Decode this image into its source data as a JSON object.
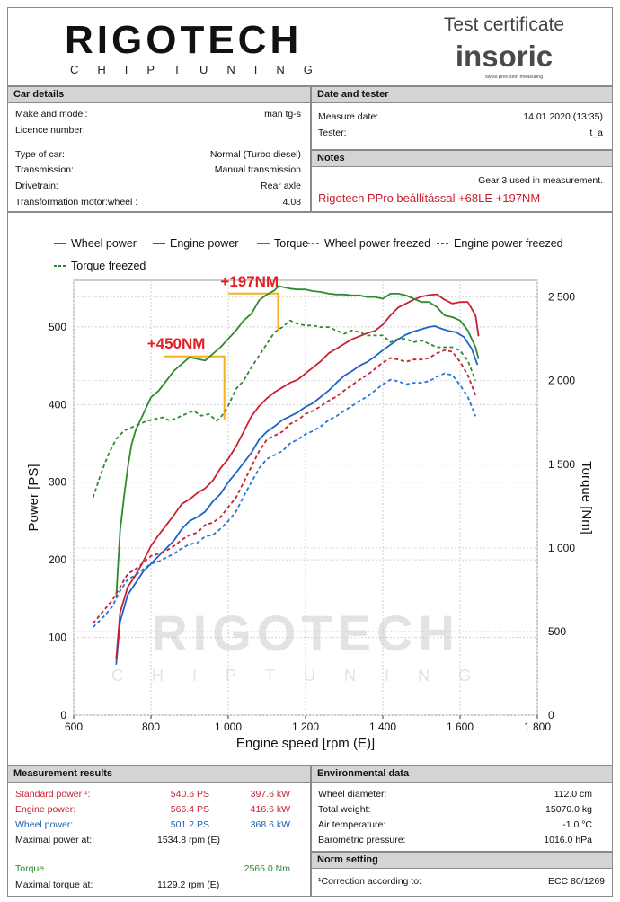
{
  "header": {
    "brand": "RIGOTECH",
    "brand_sub": "CHIPTUNING",
    "cert_title": "Test certificate",
    "cert_brand": "insoric",
    "cert_tagline": "swiss precision measuring"
  },
  "car_details": {
    "title": "Car details",
    "make_label": "Make and model:",
    "make_value": "man tg-s",
    "licence_label": "Licence number:",
    "licence_value": "",
    "type_label": "Type of car:",
    "type_value": "Normal (Turbo diesel)",
    "transmission_label": "Transmission:",
    "transmission_value": "Manual transmission",
    "drivetrain_label": "Drivetrain:",
    "drivetrain_value": "Rear axle",
    "ratio_label": "Transformation motor:wheel :",
    "ratio_value": "4.08"
  },
  "date_tester": {
    "title": "Date and tester",
    "date_label": "Measure date:",
    "date_value": "14.01.2020 (13:35)",
    "tester_label": "Tester:",
    "tester_value": "t_a"
  },
  "notes": {
    "title": "Notes",
    "gear_note": "Gear 3 used in measurement.",
    "tuning_note": "Rigotech PPro beállítással +68LE +197NM"
  },
  "chart_data": {
    "type": "line",
    "xlabel": "Engine speed [rpm (E)]",
    "ylabel": "Power [PS]",
    "y2label": "Torque [Nm]",
    "xlim": [
      600,
      1800
    ],
    "ylim": [
      0,
      560
    ],
    "y2lim": [
      0,
      2600
    ],
    "x_ticks": [
      "600",
      "800",
      "1 000",
      "1 200",
      "1 400",
      "1 600",
      "1 800"
    ],
    "y_ticks": [
      "0",
      "100",
      "200",
      "300",
      "400",
      "500"
    ],
    "y2_ticks": [
      "0",
      "500",
      "1 000",
      "1 500",
      "2 000",
      "2 500"
    ],
    "legend_placement": "top",
    "grid": true,
    "annotations": [
      {
        "text": "+197NM",
        "color": "#e02020"
      },
      {
        "text": "+450NM",
        "color": "#e02020"
      }
    ],
    "watermark": "RIGOTECH CHIPTUNING",
    "series": [
      {
        "name": "Wheel power",
        "axis": "left",
        "color": "#1e63c8",
        "dash": false,
        "x": [
          710,
          720,
          740,
          760,
          780,
          800,
          820,
          840,
          860,
          880,
          900,
          920,
          940,
          960,
          980,
          1000,
          1020,
          1040,
          1060,
          1080,
          1100,
          1120,
          1140,
          1160,
          1180,
          1200,
          1220,
          1240,
          1260,
          1280,
          1300,
          1320,
          1340,
          1360,
          1380,
          1400,
          1420,
          1440,
          1460,
          1480,
          1500,
          1520,
          1535,
          1550,
          1570,
          1590,
          1610,
          1630,
          1645
        ],
        "y": [
          65,
          120,
          155,
          170,
          185,
          195,
          205,
          215,
          225,
          240,
          250,
          255,
          262,
          275,
          285,
          300,
          312,
          325,
          338,
          355,
          365,
          372,
          380,
          385,
          390,
          397,
          402,
          410,
          418,
          428,
          437,
          443,
          450,
          455,
          462,
          470,
          477,
          484,
          490,
          494,
          497,
          500,
          501,
          498,
          495,
          493,
          487,
          472,
          451
        ]
      },
      {
        "name": "Engine power",
        "axis": "left",
        "color": "#c8202f",
        "dash": false,
        "x": [
          710,
          720,
          740,
          760,
          780,
          800,
          820,
          840,
          860,
          880,
          900,
          920,
          940,
          960,
          980,
          1000,
          1020,
          1040,
          1060,
          1080,
          1100,
          1120,
          1140,
          1160,
          1180,
          1200,
          1220,
          1240,
          1260,
          1280,
          1300,
          1320,
          1340,
          1360,
          1380,
          1400,
          1420,
          1440,
          1460,
          1480,
          1500,
          1520,
          1540,
          1560,
          1580,
          1600,
          1620,
          1640,
          1648
        ],
        "y": [
          72,
          132,
          165,
          180,
          198,
          218,
          232,
          245,
          258,
          272,
          278,
          286,
          292,
          302,
          318,
          330,
          346,
          365,
          385,
          398,
          408,
          416,
          422,
          428,
          432,
          440,
          448,
          456,
          466,
          472,
          478,
          484,
          488,
          492,
          495,
          503,
          515,
          525,
          530,
          535,
          539,
          541,
          542,
          535,
          530,
          532,
          532,
          515,
          488
        ]
      },
      {
        "name": "Torque",
        "axis": "right",
        "color": "#2e8a2e",
        "dash": false,
        "x": [
          710,
          720,
          730,
          740,
          750,
          760,
          780,
          800,
          820,
          840,
          860,
          880,
          900,
          920,
          940,
          960,
          980,
          1000,
          1020,
          1040,
          1060,
          1080,
          1100,
          1120,
          1130,
          1140,
          1160,
          1180,
          1200,
          1220,
          1240,
          1260,
          1280,
          1300,
          1320,
          1340,
          1360,
          1380,
          1400,
          1420,
          1440,
          1460,
          1480,
          1500,
          1520,
          1540,
          1560,
          1580,
          1600,
          1620,
          1640,
          1648
        ],
        "y": [
          700,
          1100,
          1300,
          1480,
          1620,
          1700,
          1800,
          1900,
          1940,
          2000,
          2060,
          2100,
          2140,
          2130,
          2120,
          2160,
          2200,
          2250,
          2300,
          2360,
          2400,
          2480,
          2515,
          2540,
          2565,
          2560,
          2550,
          2545,
          2545,
          2535,
          2530,
          2520,
          2515,
          2515,
          2510,
          2510,
          2500,
          2500,
          2490,
          2520,
          2520,
          2510,
          2490,
          2470,
          2470,
          2440,
          2390,
          2380,
          2360,
          2300,
          2200,
          2130
        ]
      },
      {
        "name": "Wheel power freezed",
        "axis": "left",
        "color": "#2b74d6",
        "dash": true,
        "x": [
          650,
          680,
          700,
          720,
          740,
          760,
          780,
          800,
          820,
          840,
          860,
          880,
          900,
          920,
          940,
          960,
          980,
          1000,
          1020,
          1040,
          1060,
          1080,
          1100,
          1120,
          1140,
          1160,
          1180,
          1200,
          1220,
          1240,
          1260,
          1280,
          1300,
          1320,
          1340,
          1360,
          1380,
          1400,
          1420,
          1440,
          1460,
          1480,
          1500,
          1520,
          1540,
          1560,
          1580,
          1600,
          1620,
          1640
        ],
        "y": [
          113,
          128,
          140,
          160,
          175,
          180,
          188,
          195,
          198,
          203,
          208,
          215,
          220,
          222,
          230,
          232,
          240,
          250,
          262,
          282,
          300,
          318,
          330,
          335,
          340,
          350,
          355,
          362,
          366,
          372,
          380,
          385,
          392,
          398,
          405,
          410,
          418,
          426,
          432,
          430,
          426,
          428,
          428,
          430,
          436,
          440,
          438,
          425,
          410,
          385
        ]
      },
      {
        "name": "Engine power freezed",
        "axis": "left",
        "color": "#c8202f",
        "dash": true,
        "x": [
          650,
          680,
          700,
          720,
          740,
          760,
          780,
          800,
          820,
          840,
          860,
          880,
          900,
          920,
          940,
          960,
          980,
          1000,
          1020,
          1040,
          1060,
          1080,
          1100,
          1120,
          1140,
          1160,
          1180,
          1200,
          1220,
          1240,
          1260,
          1280,
          1300,
          1320,
          1340,
          1360,
          1380,
          1400,
          1420,
          1440,
          1460,
          1480,
          1500,
          1520,
          1540,
          1560,
          1580,
          1600,
          1620,
          1640
        ],
        "y": [
          118,
          136,
          148,
          165,
          182,
          188,
          196,
          205,
          208,
          212,
          218,
          226,
          232,
          235,
          245,
          248,
          255,
          268,
          280,
          300,
          320,
          340,
          355,
          360,
          365,
          375,
          380,
          388,
          392,
          398,
          405,
          410,
          418,
          425,
          432,
          438,
          446,
          454,
          460,
          458,
          455,
          458,
          458,
          460,
          466,
          470,
          468,
          455,
          438,
          412
        ]
      },
      {
        "name": "Torque freezed",
        "axis": "right",
        "color": "#2e8a2e",
        "dash": true,
        "x": [
          650,
          670,
          690,
          710,
          730,
          750,
          770,
          790,
          810,
          830,
          850,
          870,
          890,
          910,
          930,
          950,
          970,
          980,
          990,
          1000,
          1020,
          1040,
          1060,
          1080,
          1100,
          1120,
          1140,
          1160,
          1180,
          1200,
          1220,
          1240,
          1260,
          1280,
          1300,
          1320,
          1340,
          1360,
          1380,
          1400,
          1420,
          1440,
          1460,
          1480,
          1500,
          1520,
          1540,
          1560,
          1580,
          1600,
          1620,
          1640
        ],
        "y": [
          1300,
          1440,
          1560,
          1650,
          1700,
          1720,
          1740,
          1760,
          1770,
          1780,
          1760,
          1780,
          1800,
          1820,
          1790,
          1800,
          1760,
          1780,
          1810,
          1850,
          1950,
          2000,
          2080,
          2150,
          2220,
          2290,
          2320,
          2360,
          2340,
          2330,
          2330,
          2320,
          2320,
          2300,
          2280,
          2300,
          2290,
          2270,
          2270,
          2270,
          2230,
          2250,
          2250,
          2230,
          2240,
          2220,
          2200,
          2200,
          2200,
          2180,
          2120,
          2000
        ]
      }
    ]
  },
  "measurement": {
    "title": "Measurement results",
    "std_label": "Standard power ¹:",
    "std_ps": "540.6 PS",
    "std_kw": "397.6 kW",
    "eng_label": "Engine power:",
    "eng_ps": "566.4 PS",
    "eng_kw": "416.6 kW",
    "wheel_label": "Wheel power:",
    "wheel_ps": "501.2 PS",
    "wheel_kw": "368.6 kW",
    "maxp_label": "Maximal power at:",
    "maxp_value": "1534.8 rpm (E)",
    "torque_label": "Torque",
    "torque_value": "2565.0 Nm",
    "maxt_label": "Maximal torque at:",
    "maxt_value": "1129.2 rpm (E)"
  },
  "environment": {
    "title": "Environmental data",
    "wheel_d_label": "Wheel diameter:",
    "wheel_d_value": "112.0 cm",
    "weight_label": "Total weight:",
    "weight_value": "15070.0 kg",
    "air_label": "Air temperature:",
    "air_value": "-1.0 °C",
    "baro_label": "Barometric pressure:",
    "baro_value": "1016.0 hPa"
  },
  "norm": {
    "title": "Norm setting",
    "corr_label": "¹Correction according to:",
    "corr_value": "ECC 80/1269"
  }
}
